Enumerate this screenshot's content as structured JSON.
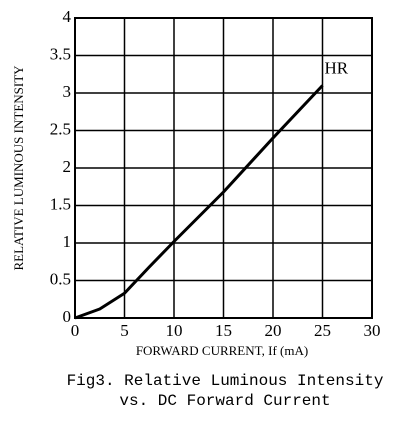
{
  "chart_data": {
    "type": "line",
    "title": "Fig3. Relative Luminous Intensity",
    "subtitle": "vs. DC Forward Current",
    "x_label": "FORWARD CURRENT, If (mA)",
    "y_label": "RELATIVE LUMINOUS INTENSITY",
    "x": [
      0,
      2.5,
      5,
      7.5,
      10,
      15,
      20,
      25
    ],
    "series": [
      {
        "name": "HR",
        "color": "#000000",
        "values": [
          0,
          0.12,
          0.33,
          0.68,
          1.02,
          1.68,
          2.4,
          3.1
        ]
      }
    ],
    "xlim": [
      0,
      30
    ],
    "xticks": [
      0,
      5,
      10,
      15,
      20,
      25,
      30
    ],
    "ylim": [
      0,
      4
    ],
    "yticks": [
      0,
      0.5,
      1,
      1.5,
      2,
      2.5,
      3,
      3.5,
      4
    ],
    "grid": true
  }
}
